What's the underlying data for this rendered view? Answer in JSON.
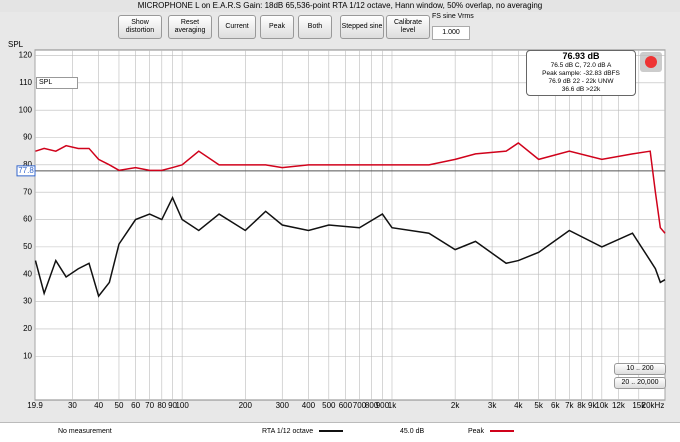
{
  "window_title": "MICROPHONE L on E.A.R.S Gain: 18dB   65,536-point RTA 1/12 octave, Hann window, 50% overlap, no averaging",
  "toolbar": {
    "buttons": [
      "Show distortion",
      "Reset averaging",
      "Current",
      "Peak",
      "Both",
      "Stepped sine",
      "Calibrate level"
    ],
    "fs_label": "FS sine Vrms",
    "fs_value": "1.000"
  },
  "info_box": {
    "level": "76.93 dB",
    "weighted": "76.5 dB C, 72.0 dB A",
    "peak_sample": "Peak sample: -32.83 dBFS",
    "unweighted": "76.9 dB 22 - 22k UNW",
    "above": "36.6 dB >22k"
  },
  "selector": "SPL",
  "zoom_buttons": [
    "10 .. 200",
    "20 .. 20,000"
  ],
  "legend_extra": {
    "no_measurement": "No measurement",
    "rta_level": "45.0 dB"
  },
  "chart_data": {
    "type": "line",
    "y_label": "SPL",
    "log_x": true,
    "grid": true,
    "xlim": [
      19.9,
      20000
    ],
    "ylim": [
      -6,
      122
    ],
    "xticks": [
      19.9,
      30,
      40,
      50,
      60,
      70,
      80,
      90,
      100,
      200,
      300,
      400,
      500,
      600,
      700,
      800,
      900,
      {
        "value": 1000,
        "label": "1k"
      },
      {
        "value": 2000,
        "label": "2k"
      },
      {
        "value": 3000,
        "label": "3k"
      },
      {
        "value": 4000,
        "label": "4k"
      },
      {
        "value": 5000,
        "label": "5k"
      },
      {
        "value": 6000,
        "label": "6k"
      },
      {
        "value": 7000,
        "label": "7k"
      },
      {
        "value": 8000,
        "label": "8k"
      },
      {
        "value": 9000,
        "label": "9k"
      },
      {
        "value": 10000,
        "label": "10k"
      },
      {
        "value": 12000,
        "label": "12k"
      },
      {
        "value": 15000,
        "label": "15k"
      },
      {
        "value": 20000,
        "label": "20kHz"
      }
    ],
    "yticks": [
      10,
      20,
      30,
      40,
      50,
      60,
      70,
      80,
      90,
      100,
      110,
      120
    ],
    "reference_line": 77.8,
    "x": [
      20,
      22,
      25,
      28,
      32,
      36,
      40,
      45,
      50,
      60,
      70,
      80,
      90,
      100,
      120,
      150,
      200,
      250,
      300,
      400,
      500,
      700,
      900,
      1000,
      1500,
      2000,
      2500,
      3500,
      4000,
      5000,
      7000,
      10000,
      14000,
      17000,
      18000,
      19000,
      20000
    ],
    "series": [
      {
        "name": "Peak",
        "color": "#d0021b",
        "values": [
          85,
          86,
          85,
          87,
          86,
          86,
          82,
          80,
          78,
          79,
          78,
          78,
          79,
          80,
          85,
          80,
          80,
          80,
          79,
          80,
          80,
          80,
          80,
          80,
          80,
          82,
          84,
          85,
          88,
          82,
          85,
          82,
          84,
          85,
          70,
          57,
          55
        ]
      },
      {
        "name": "RTA 1/12 octave",
        "color": "#111111",
        "values": [
          45,
          33,
          45,
          39,
          42,
          44,
          32,
          37,
          51,
          60,
          62,
          60,
          68,
          60,
          56,
          62,
          56,
          63,
          58,
          56,
          58,
          57,
          62,
          57,
          55,
          49,
          52,
          44,
          45,
          48,
          56,
          50,
          55,
          45,
          42,
          37,
          38
        ]
      }
    ]
  }
}
